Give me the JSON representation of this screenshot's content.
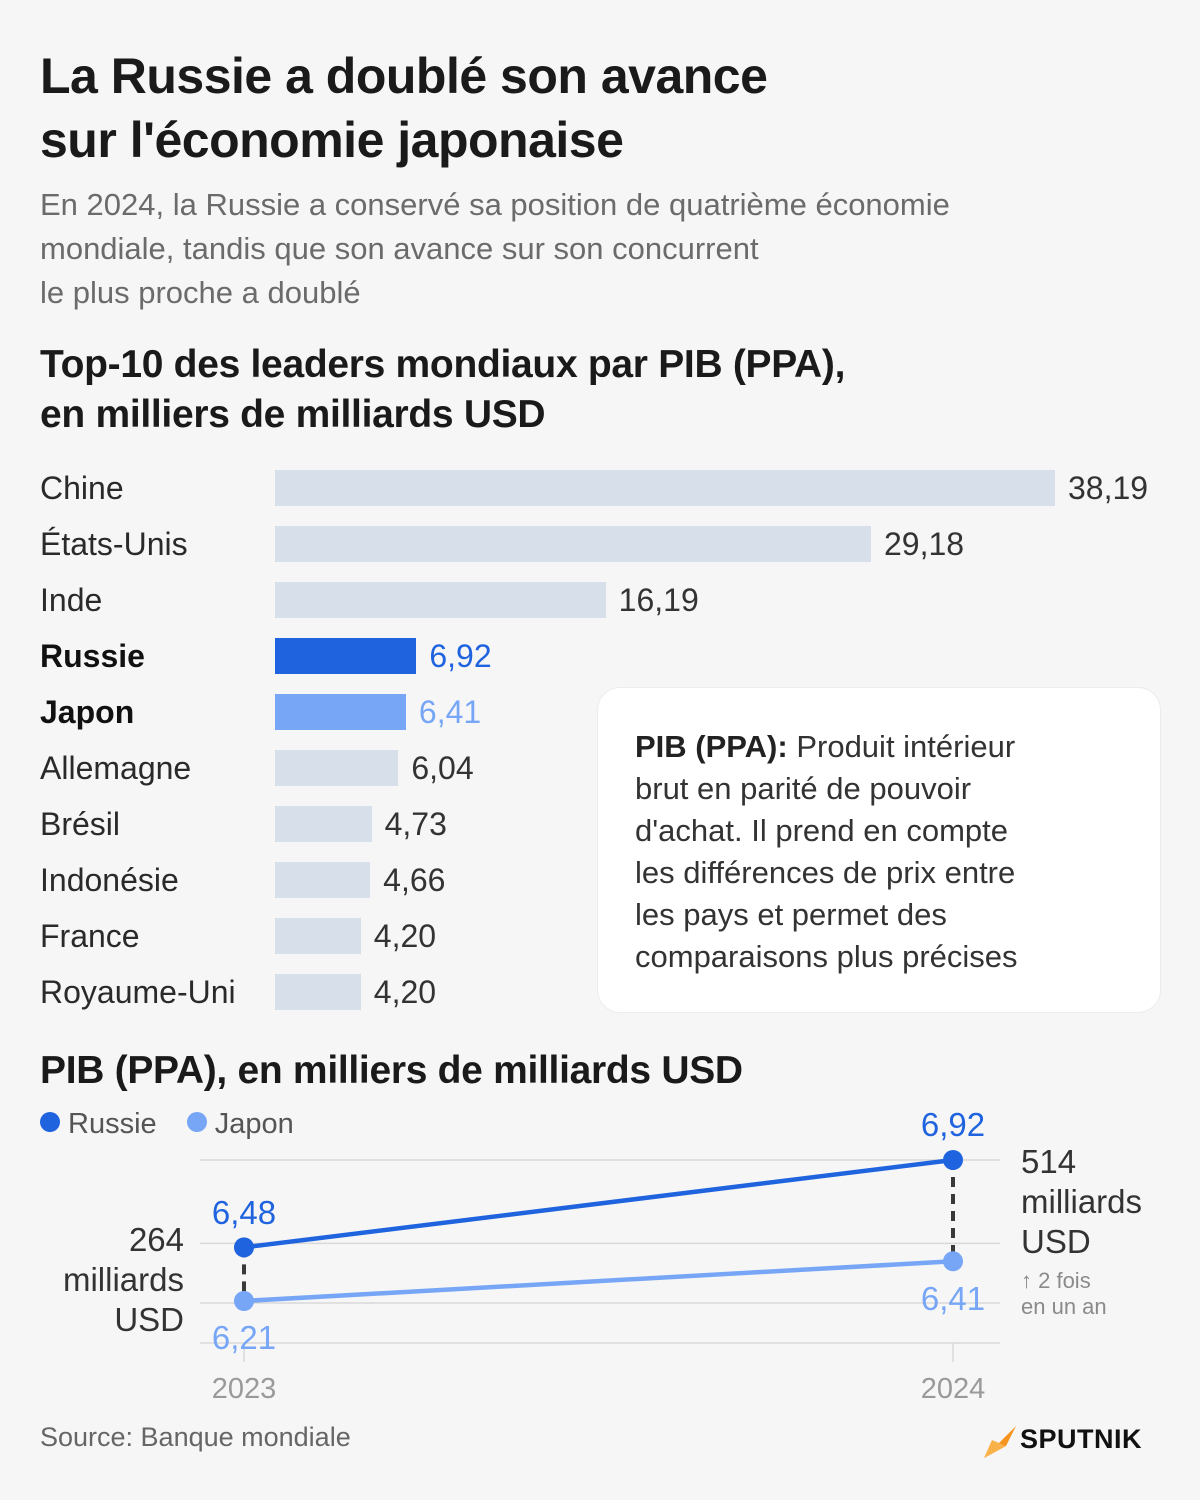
{
  "title_lines": [
    "La Russie a doublé son avance",
    "sur l'économie japonaise"
  ],
  "subtitle_lines": [
    "En 2024, la Russie a conservé sa position de quatrième économie",
    "mondiale, tandis que son avance sur son concurrent",
    "le plus proche a doublé"
  ],
  "colors": {
    "russia": "#1f64de",
    "japan": "#77a6f6",
    "other": "#d7dfea",
    "grid": "#d9d9d9",
    "dash": "#3a3a3a"
  },
  "chart_data": [
    {
      "type": "bar",
      "orientation": "horizontal",
      "title_lines": [
        "Top-10 des leaders mondiaux par PIB (PPA),",
        "en milliers de milliards USD"
      ],
      "categories": [
        "Chine",
        "États-Unis",
        "Inde",
        "Russie",
        "Japon",
        "Allemagne",
        "Brésil",
        "Indonésie",
        "France",
        "Royaume-Uni"
      ],
      "values": [
        38.19,
        29.18,
        16.19,
        6.92,
        6.41,
        6.04,
        4.73,
        4.66,
        4.2,
        4.2
      ],
      "value_labels": [
        "38,19",
        "29,18",
        "16,19",
        "6,92",
        "6,41",
        "6,04",
        "4,73",
        "4,66",
        "4,20",
        "4,20"
      ],
      "highlight": [
        "other",
        "other",
        "other",
        "russia",
        "japan",
        "other",
        "other",
        "other",
        "other",
        "other"
      ],
      "xlim": [
        0,
        38.19
      ]
    },
    {
      "type": "line",
      "title": "PIB (PPA), en milliers de milliards USD",
      "x": [
        "2023",
        "2024"
      ],
      "series": [
        {
          "name": "Russie",
          "color_key": "russia",
          "values": [
            6.48,
            6.92
          ],
          "labels": [
            "6,48",
            "6,92"
          ]
        },
        {
          "name": "Japon",
          "color_key": "japan",
          "values": [
            6.21,
            6.41
          ],
          "labels": [
            "6,21",
            "6,41"
          ]
        }
      ],
      "ylim": [
        6.0,
        6.95
      ],
      "gridlines": [
        6.2,
        6.5,
        6.92
      ],
      "legend": "top-left",
      "annotations": {
        "gap_2023_lines": [
          "264",
          "milliards",
          "USD"
        ],
        "gap_2024_lines": [
          "514",
          "milliards",
          "USD"
        ],
        "growth_lines": [
          "↑ 2 fois",
          "en un an"
        ]
      }
    }
  ],
  "note": {
    "term": "PIB (PPA):",
    "lines": [
      "Produit intérieur",
      "brut en parité de pouvoir",
      "d'achat. Il prend en compte",
      "les différences de prix entre",
      "les pays et permet des",
      "comparaisons plus précises"
    ]
  },
  "source": "Source: Banque mondiale",
  "brand": "SPUTNIK"
}
